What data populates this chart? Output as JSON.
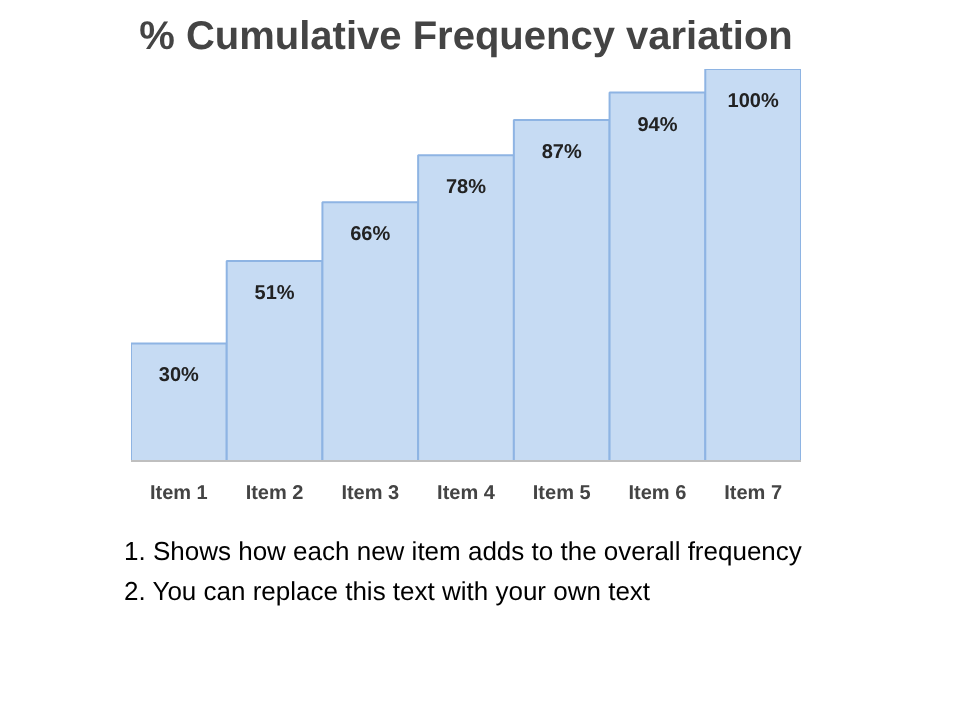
{
  "chart_data": {
    "type": "bar",
    "title": "% Cumulative Frequency variation",
    "categories": [
      "Item 1",
      "Item 2",
      "Item 3",
      "Item 4",
      "Item 5",
      "Item 6",
      "Item 7"
    ],
    "values": [
      30,
      51,
      66,
      78,
      87,
      94,
      100
    ],
    "value_labels": [
      "30%",
      "51%",
      "66%",
      "78%",
      "87%",
      "94%",
      "100%"
    ],
    "color": "#c6dbf3",
    "grid": false,
    "annotations": [
      "1.  Shows  how each new item adds to the overall frequency",
      "2.  You can replace this text with your own text"
    ]
  }
}
